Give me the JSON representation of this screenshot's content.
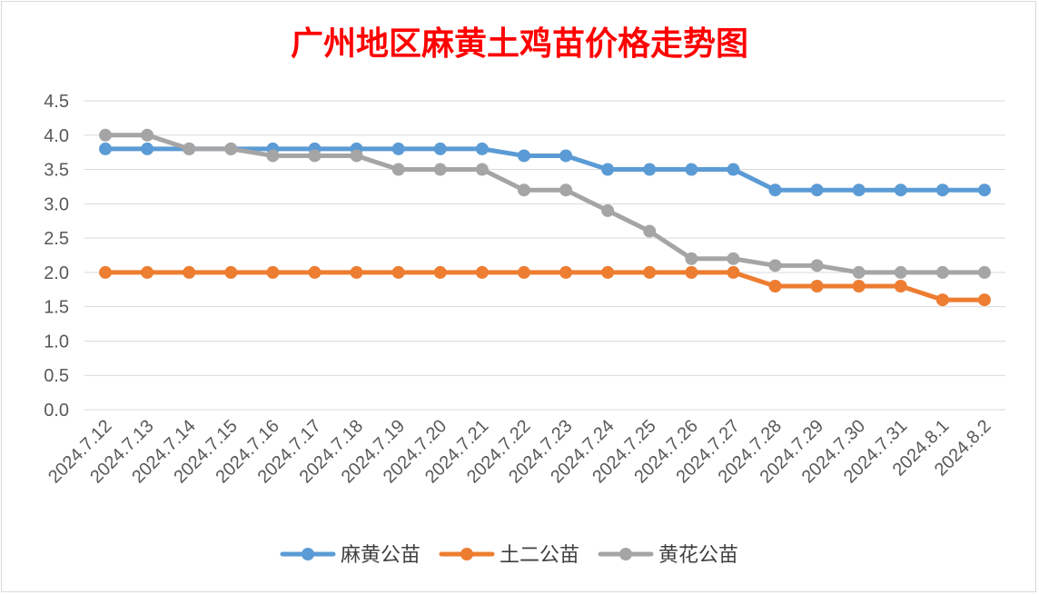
{
  "chart_data": {
    "type": "line",
    "title": "广州地区麻黄土鸡苗价格走势图",
    "title_color": "#ff0000",
    "xlabel": "",
    "ylabel": "",
    "ylim": [
      0,
      4.5
    ],
    "yticks": [
      "0.0",
      "0.5",
      "1.0",
      "1.5",
      "2.0",
      "2.5",
      "3.0",
      "3.5",
      "4.0",
      "4.5"
    ],
    "grid": true,
    "legend_position": "bottom",
    "categories": [
      "2024.7.12",
      "2024.7.13",
      "2024.7.14",
      "2024.7.15",
      "2024.7.16",
      "2024.7.17",
      "2024.7.18",
      "2024.7.19",
      "2024.7.20",
      "2024.7.21",
      "2024.7.22",
      "2024.7.23",
      "2024.7.24",
      "2024.7.25",
      "2024.7.26",
      "2024.7.27",
      "2024.7.28",
      "2024.7.29",
      "2024.7.30",
      "2024.7.31",
      "2024.8.1",
      "2024.8.2"
    ],
    "series": [
      {
        "name": "麻黄公苗",
        "color": "#5b9bd5",
        "values": [
          3.8,
          3.8,
          3.8,
          3.8,
          3.8,
          3.8,
          3.8,
          3.8,
          3.8,
          3.8,
          3.7,
          3.7,
          3.5,
          3.5,
          3.5,
          3.5,
          3.2,
          3.2,
          3.2,
          3.2,
          3.2,
          3.2
        ]
      },
      {
        "name": "土二公苗",
        "color": "#ed7d31",
        "values": [
          2.0,
          2.0,
          2.0,
          2.0,
          2.0,
          2.0,
          2.0,
          2.0,
          2.0,
          2.0,
          2.0,
          2.0,
          2.0,
          2.0,
          2.0,
          2.0,
          1.8,
          1.8,
          1.8,
          1.8,
          1.6,
          1.6
        ]
      },
      {
        "name": "黄花公苗",
        "color": "#a5a5a5",
        "values": [
          4.0,
          4.0,
          3.8,
          3.8,
          3.7,
          3.7,
          3.7,
          3.5,
          3.5,
          3.5,
          3.2,
          3.2,
          2.9,
          2.6,
          2.2,
          2.2,
          2.1,
          2.1,
          2.0,
          2.0,
          2.0,
          2.0
        ]
      }
    ]
  }
}
